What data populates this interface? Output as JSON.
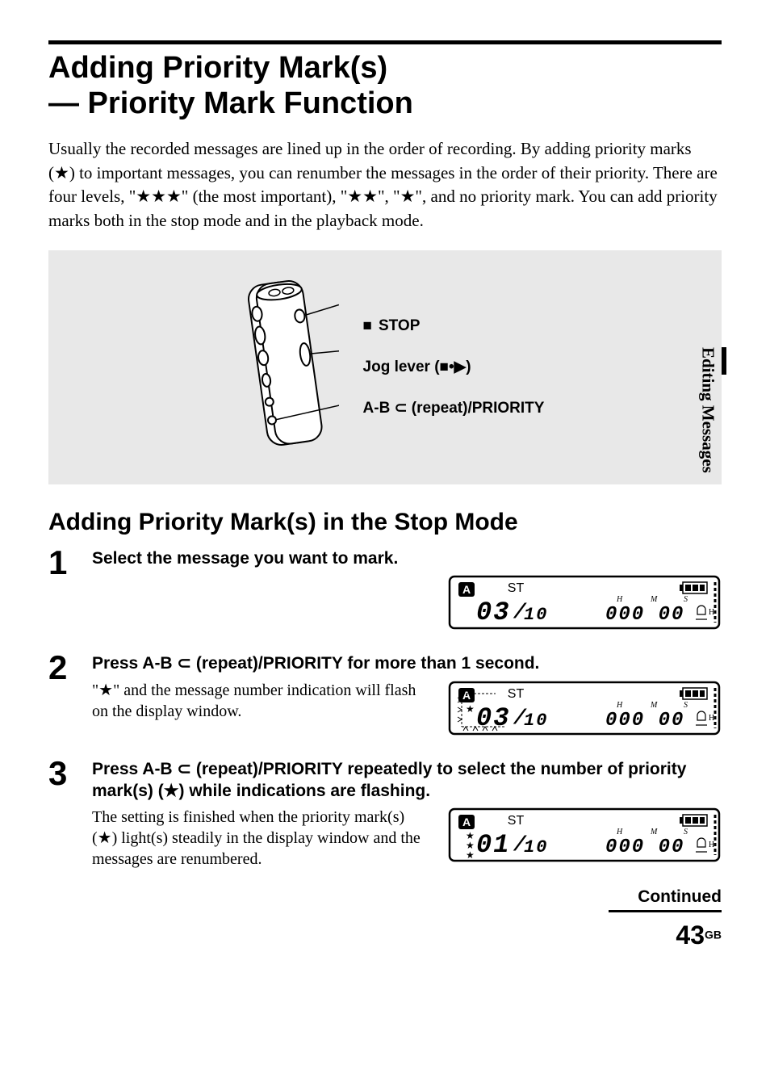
{
  "title_line1": "Adding Priority Mark(s)",
  "title_line2": "— Priority Mark Function",
  "intro": "Usually the recorded messages are lined up in the order of recording. By adding priority marks (★) to important messages, you can renumber the messages in the order of their priority.  There are four levels, \"★★★\" (the most important), \"★★\", \"★\", and no priority mark. You can add priority marks both in the stop mode and in the playback mode.",
  "device": {
    "callouts": [
      {
        "symbol": "■",
        "label": "STOP"
      },
      {
        "symbol": "",
        "label": "Jog lever (■•▶)"
      },
      {
        "symbol": "",
        "label": "A-B ⊂ (repeat)/PRIORITY"
      }
    ]
  },
  "side_tab": "Editing Messages",
  "section2": "Adding Priority Mark(s) in the Stop Mode",
  "steps": [
    {
      "num": "1",
      "head": "Select the message you want to mark.",
      "desc": "",
      "lcd": {
        "folder": "A",
        "st": "ST",
        "msg": "03",
        "sep": "/",
        "total": "10",
        "h": "H",
        "m": "M",
        "s": "S",
        "time": "000 00",
        "stars": 0,
        "flash_msg": false
      }
    },
    {
      "num": "2",
      "head": "Press A-B ⊂ (repeat)/PRIORITY for more than 1 second.",
      "desc": "\"★\" and the message number indication will flash on the display window.",
      "lcd": {
        "folder": "A",
        "st": "ST",
        "msg": "03",
        "sep": "/",
        "total": "10",
        "h": "H",
        "m": "M",
        "s": "S",
        "time": "000 00",
        "stars": 1,
        "flash_msg": true
      }
    },
    {
      "num": "3",
      "head": "Press A-B ⊂ (repeat)/PRIORITY repeatedly to select the number of priority mark(s) (★) while indications are flashing.",
      "desc": "The setting is finished when the priority mark(s) (★) light(s) steadily in the display window and the messages are renumbered.",
      "lcd": {
        "folder": "A",
        "st": "ST",
        "msg": "01",
        "sep": "/",
        "total": "10",
        "h": "H",
        "m": "M",
        "s": "S",
        "time": "000 00",
        "stars": 3,
        "flash_msg": false
      }
    }
  ],
  "continued": "Continued",
  "page": {
    "num": "43",
    "suffix": "GB"
  },
  "colors": {
    "panel_bg": "#e8e8e8",
    "text": "#000000",
    "page_bg": "#ffffff"
  }
}
